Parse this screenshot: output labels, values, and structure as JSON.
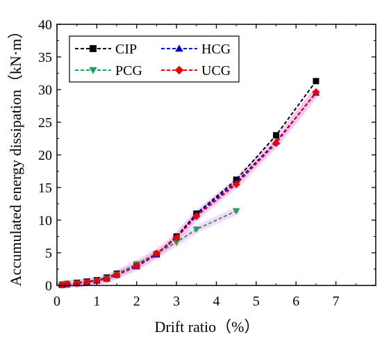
{
  "chart_data": {
    "type": "line",
    "xlabel": "Drift ratio（%）",
    "ylabel": "Accumulated energy dissipation（kN·m）",
    "xlim": [
      0,
      8
    ],
    "ylim": [
      0,
      40
    ],
    "xticks": [
      "0",
      "1",
      "2",
      "3",
      "4",
      "5",
      "6",
      "7"
    ],
    "yticks": [
      "0",
      "5",
      "10",
      "15",
      "20",
      "25",
      "30",
      "35",
      "40"
    ],
    "grid": false,
    "legend_position": "top-left",
    "series": [
      {
        "name": "CIP",
        "color": "#000000",
        "marker": "square",
        "x": [
          0.125,
          0.25,
          0.5,
          0.75,
          1.0,
          1.25,
          1.5,
          2.0,
          2.5,
          3.0,
          3.5,
          4.5,
          5.5,
          6.5
        ],
        "y": [
          0.1,
          0.2,
          0.4,
          0.6,
          0.8,
          1.2,
          1.8,
          3.2,
          4.8,
          7.5,
          11.0,
          16.2,
          23.0,
          31.3
        ]
      },
      {
        "name": "HCG",
        "color": "#0000cc",
        "marker": "triangle-up",
        "x": [
          0.125,
          0.25,
          0.5,
          0.75,
          1.0,
          1.25,
          1.5,
          2.0,
          2.5,
          3.0,
          3.5,
          4.5,
          5.5,
          6.5
        ],
        "y": [
          0.1,
          0.2,
          0.3,
          0.5,
          0.7,
          1.0,
          1.6,
          2.9,
          4.7,
          7.3,
          10.9,
          15.8,
          22.0,
          29.5
        ]
      },
      {
        "name": "PCG",
        "color": "#22a060",
        "marker": "triangle-down",
        "x": [
          0.125,
          0.25,
          0.5,
          0.75,
          1.0,
          1.25,
          1.5,
          2.0,
          2.5,
          3.0,
          3.5,
          4.5
        ],
        "y": [
          0.1,
          0.2,
          0.3,
          0.5,
          0.7,
          1.1,
          1.7,
          3.3,
          4.9,
          6.6,
          8.6,
          11.4
        ]
      },
      {
        "name": "UCG",
        "color": "#ee0000",
        "marker": "diamond",
        "x": [
          0.125,
          0.25,
          0.5,
          0.75,
          1.0,
          1.25,
          1.5,
          2.0,
          2.5,
          3.0,
          3.5,
          4.5,
          5.5,
          6.5
        ],
        "y": [
          0.1,
          0.2,
          0.3,
          0.5,
          0.7,
          1.0,
          1.6,
          3.0,
          4.9,
          7.3,
          10.6,
          15.5,
          21.8,
          29.6
        ]
      }
    ]
  }
}
